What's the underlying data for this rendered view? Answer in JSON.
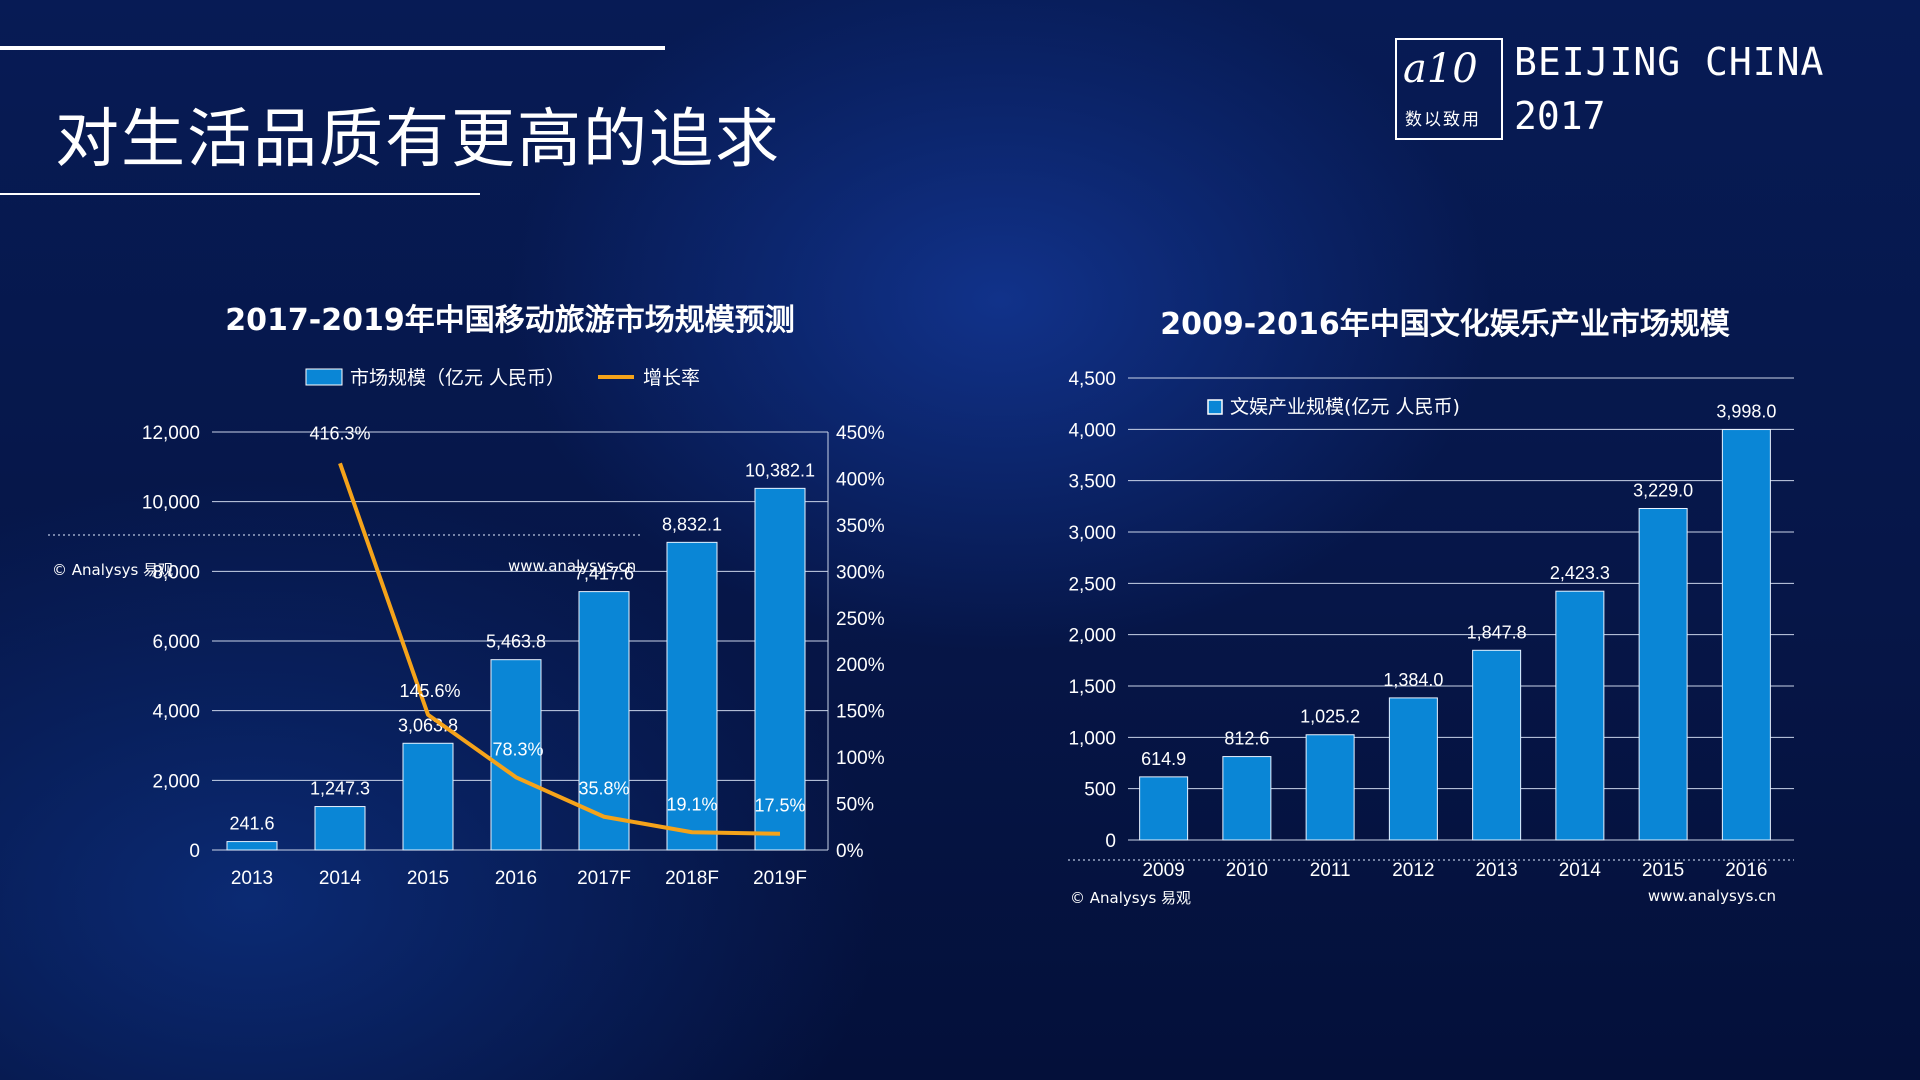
{
  "header": {
    "title": "对生活品质有更高的追求",
    "logo_mark": "a10",
    "logo_text": "数以致用",
    "event_city": "BEIJING CHINA",
    "event_year": "2017"
  },
  "colors": {
    "bar": "#0a86d6",
    "line": "#f5a31a",
    "background": "#061648"
  },
  "chart_data": [
    {
      "type": "bar",
      "title": "2017-2019年中国移动旅游市场规模预测",
      "categories": [
        "2013",
        "2014",
        "2015",
        "2016",
        "2017F",
        "2018F",
        "2019F"
      ],
      "series": [
        {
          "name": "市场规模（亿元 人民币）",
          "type": "bar",
          "axis": "left",
          "values": [
            241.6,
            1247.3,
            3063.8,
            5463.8,
            7417.6,
            8832.1,
            10382.1
          ],
          "labels": [
            "241.6",
            "1,247.3",
            "3,063.8",
            "5,463.8",
            "7,417.6",
            "8,832.1",
            "10,382.1"
          ]
        },
        {
          "name": "增长率",
          "type": "line",
          "axis": "right",
          "x": [
            "2014",
            "2015",
            "2016",
            "2017F",
            "2018F",
            "2019F"
          ],
          "values": [
            416.3,
            145.6,
            78.3,
            35.8,
            19.1,
            17.5
          ],
          "labels": [
            "416.3%",
            "145.6%",
            "78.3%",
            "35.8%",
            "19.1%",
            "17.5%"
          ]
        }
      ],
      "ylim": [
        0,
        12000
      ],
      "y_ticks": [
        "0",
        "2,000",
        "4,000",
        "6,000",
        "8,000",
        "10,000",
        "12,000"
      ],
      "y2lim": [
        0,
        450
      ],
      "y2_ticks": [
        "0%",
        "50%",
        "100%",
        "150%",
        "200%",
        "250%",
        "300%",
        "350%",
        "400%",
        "450%"
      ],
      "grid": true,
      "legend": "top",
      "watermarks": [
        "© Analysys 易观",
        "www.analysys.cn"
      ]
    },
    {
      "type": "bar",
      "title": "2009-2016年中国文化娱乐产业市场规模",
      "categories": [
        "2009",
        "2010",
        "2011",
        "2012",
        "2013",
        "2014",
        "2015",
        "2016"
      ],
      "series": [
        {
          "name": "文娱产业规模(亿元 人民币)",
          "values": [
            614.9,
            812.6,
            1025.2,
            1384.0,
            1847.8,
            2423.3,
            3229.0,
            3998.0
          ],
          "labels": [
            "614.9",
            "812.6",
            "1,025.2",
            "1,384.0",
            "1,847.8",
            "2,423.3",
            "3,229.0",
            "3,998.0"
          ]
        }
      ],
      "ylim": [
        0,
        4500
      ],
      "y_ticks": [
        "0",
        "500",
        "1,000",
        "1,500",
        "2,000",
        "2,500",
        "3,000",
        "3,500",
        "4,000",
        "4,500"
      ],
      "grid": true,
      "legend": "top-left",
      "watermarks": [
        "© Analysys 易观",
        "www.analysys.cn"
      ]
    }
  ]
}
